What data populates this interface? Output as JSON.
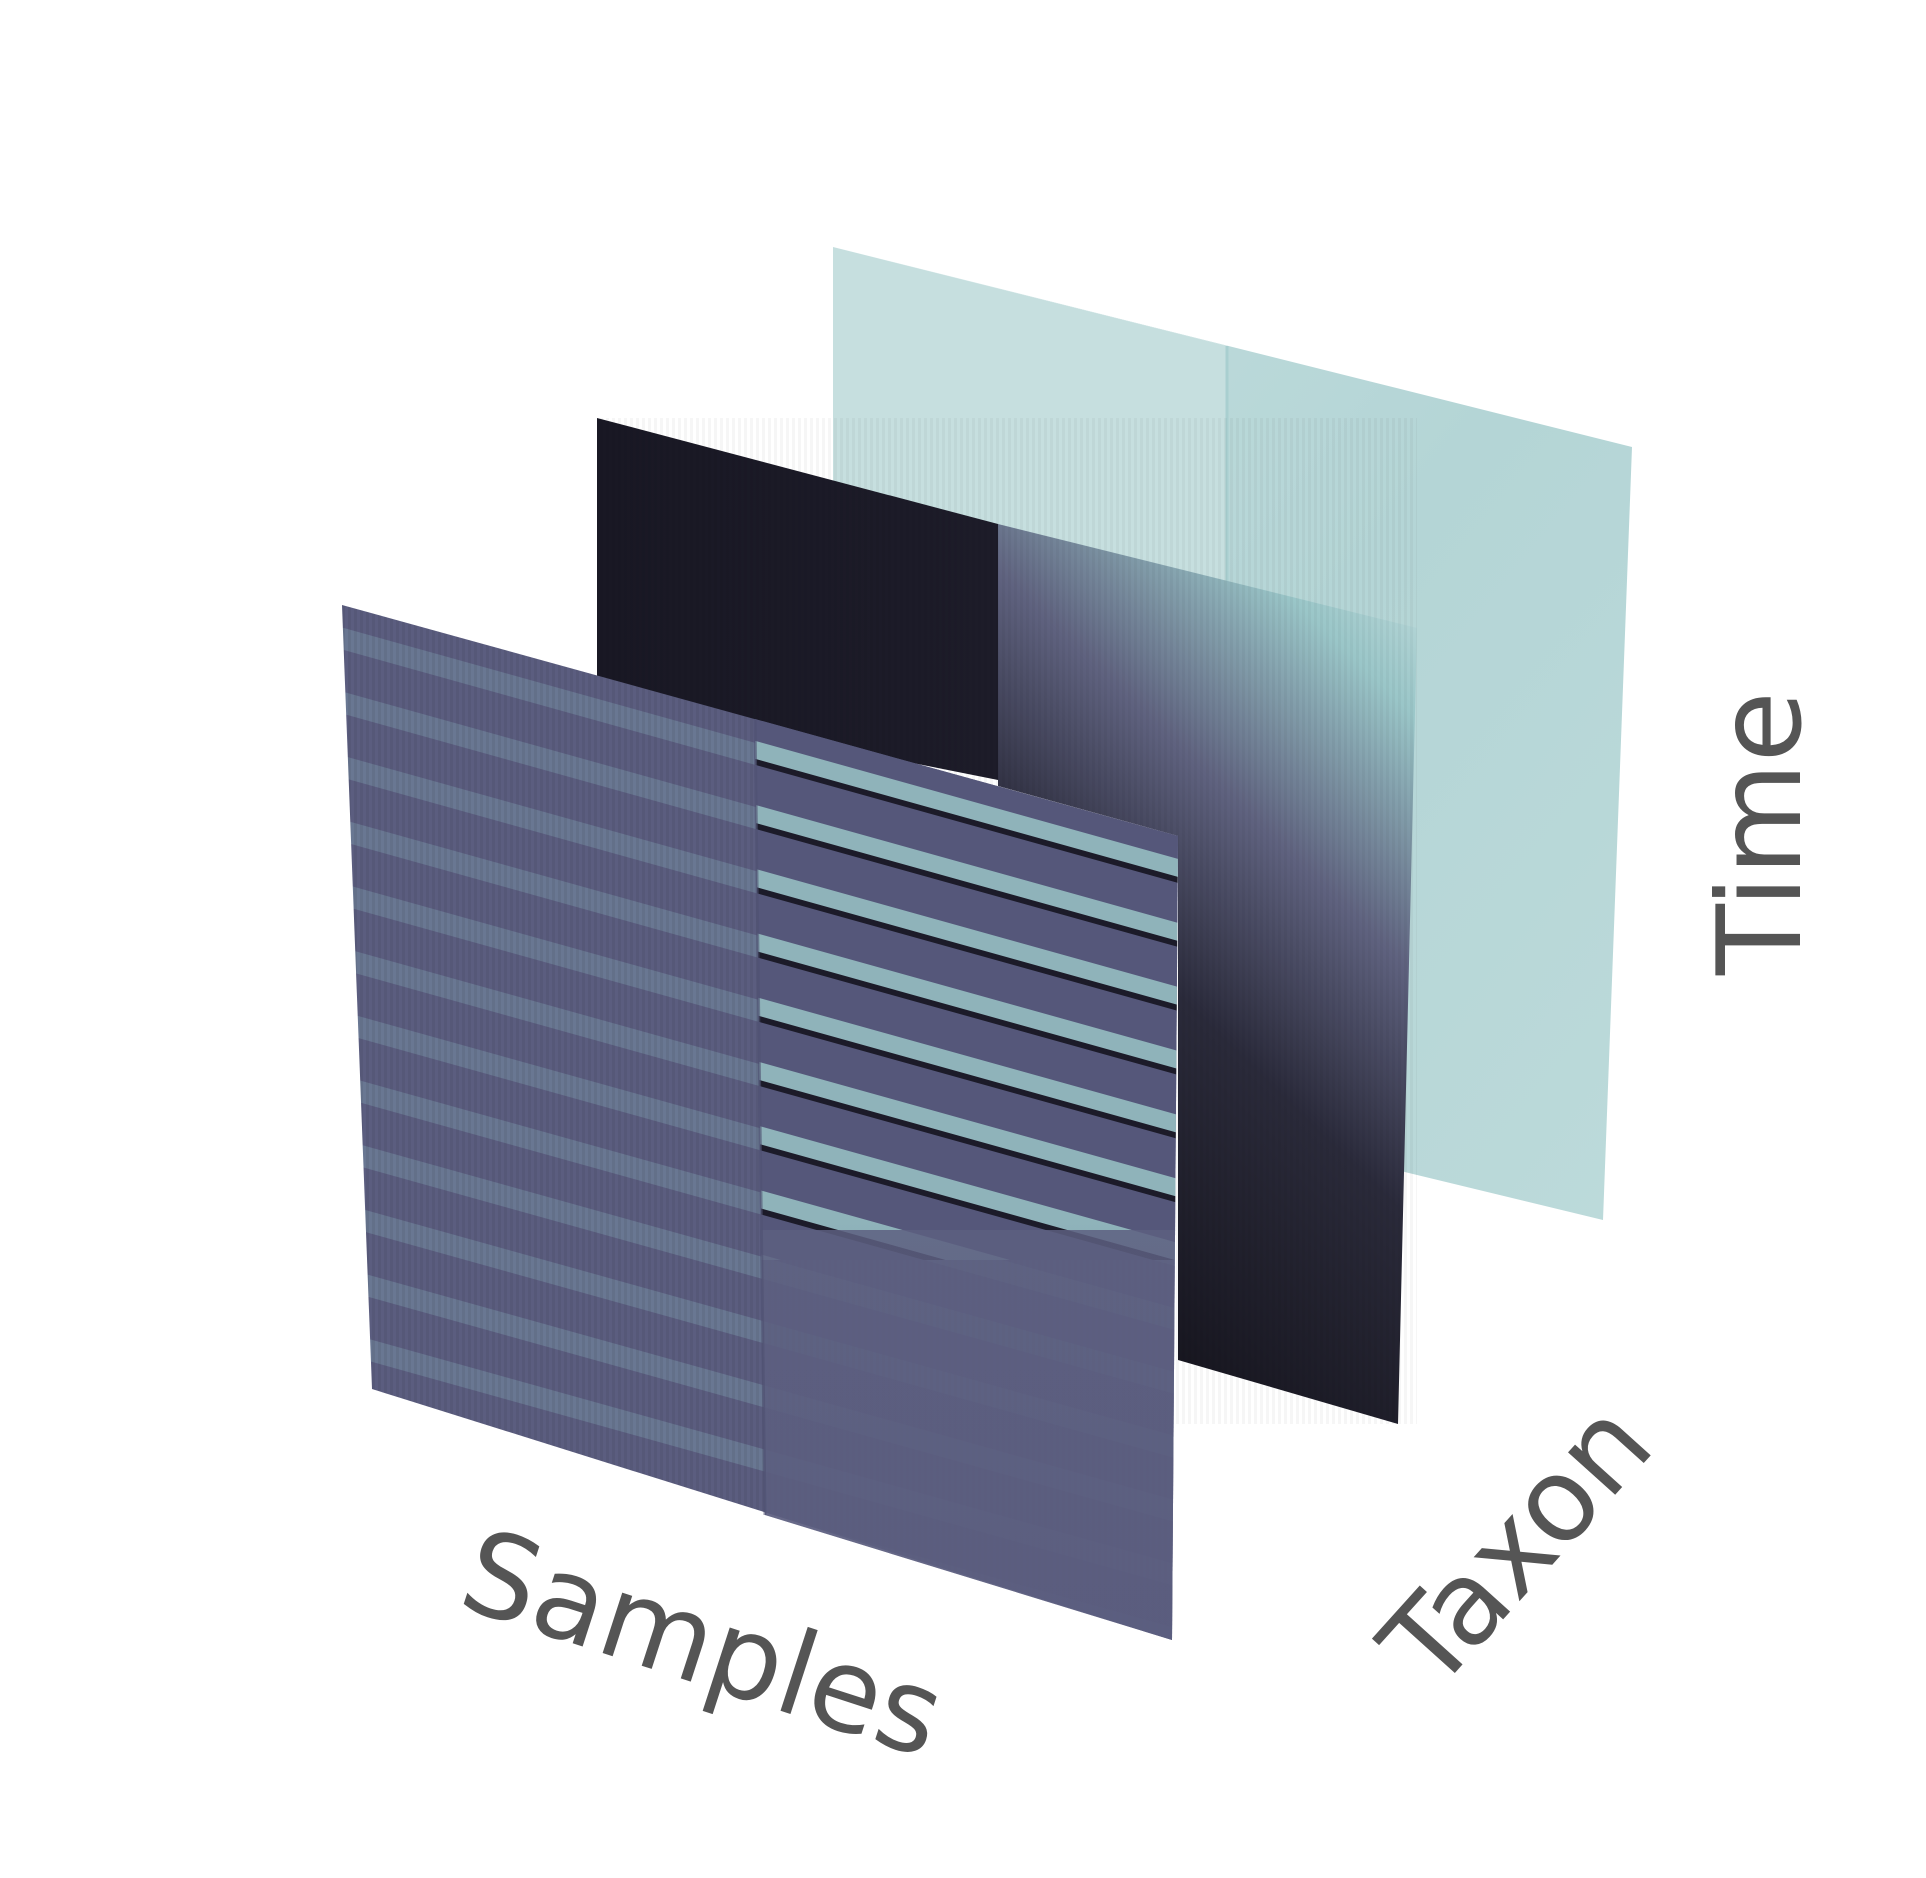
{
  "axes": {
    "x_label": "Samples",
    "depth_label": "Taxon",
    "y_label": "Time"
  },
  "colors": {
    "label": "#555555",
    "back_slice_teal": "#b7d7d7",
    "middle_slice_dark": "#1b1a26",
    "front_slice_slate": "#5c5e80",
    "band_light": "#6e8096"
  }
}
